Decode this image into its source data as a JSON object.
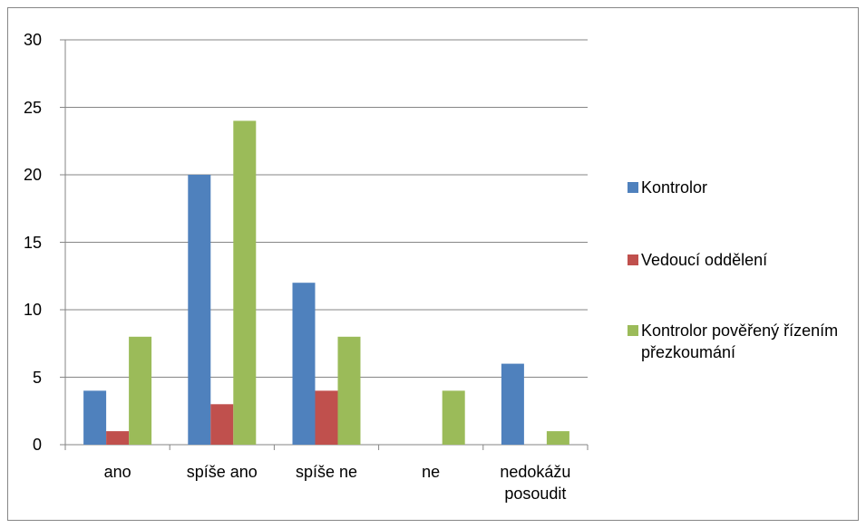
{
  "chart_data": {
    "type": "bar",
    "categories": [
      "ano",
      "spíše ano",
      "spíše ne",
      "ne",
      "nedokážu posoudit"
    ],
    "series": [
      {
        "name": "Kontrolor",
        "color": "#4f81bd",
        "values": [
          4,
          20,
          12,
          0,
          6
        ]
      },
      {
        "name": "Vedoucí oddělení",
        "color": "#c0504d",
        "values": [
          1,
          3,
          4,
          0,
          0
        ]
      },
      {
        "name": "Kontrolor pověřený řízením přezkoumání",
        "color": "#9bbb59",
        "values": [
          8,
          24,
          8,
          4,
          1
        ]
      }
    ],
    "ylim": [
      0,
      30
    ],
    "yticks": [
      0,
      5,
      10,
      15,
      20,
      25,
      30
    ],
    "grid": true,
    "legend": "right"
  }
}
